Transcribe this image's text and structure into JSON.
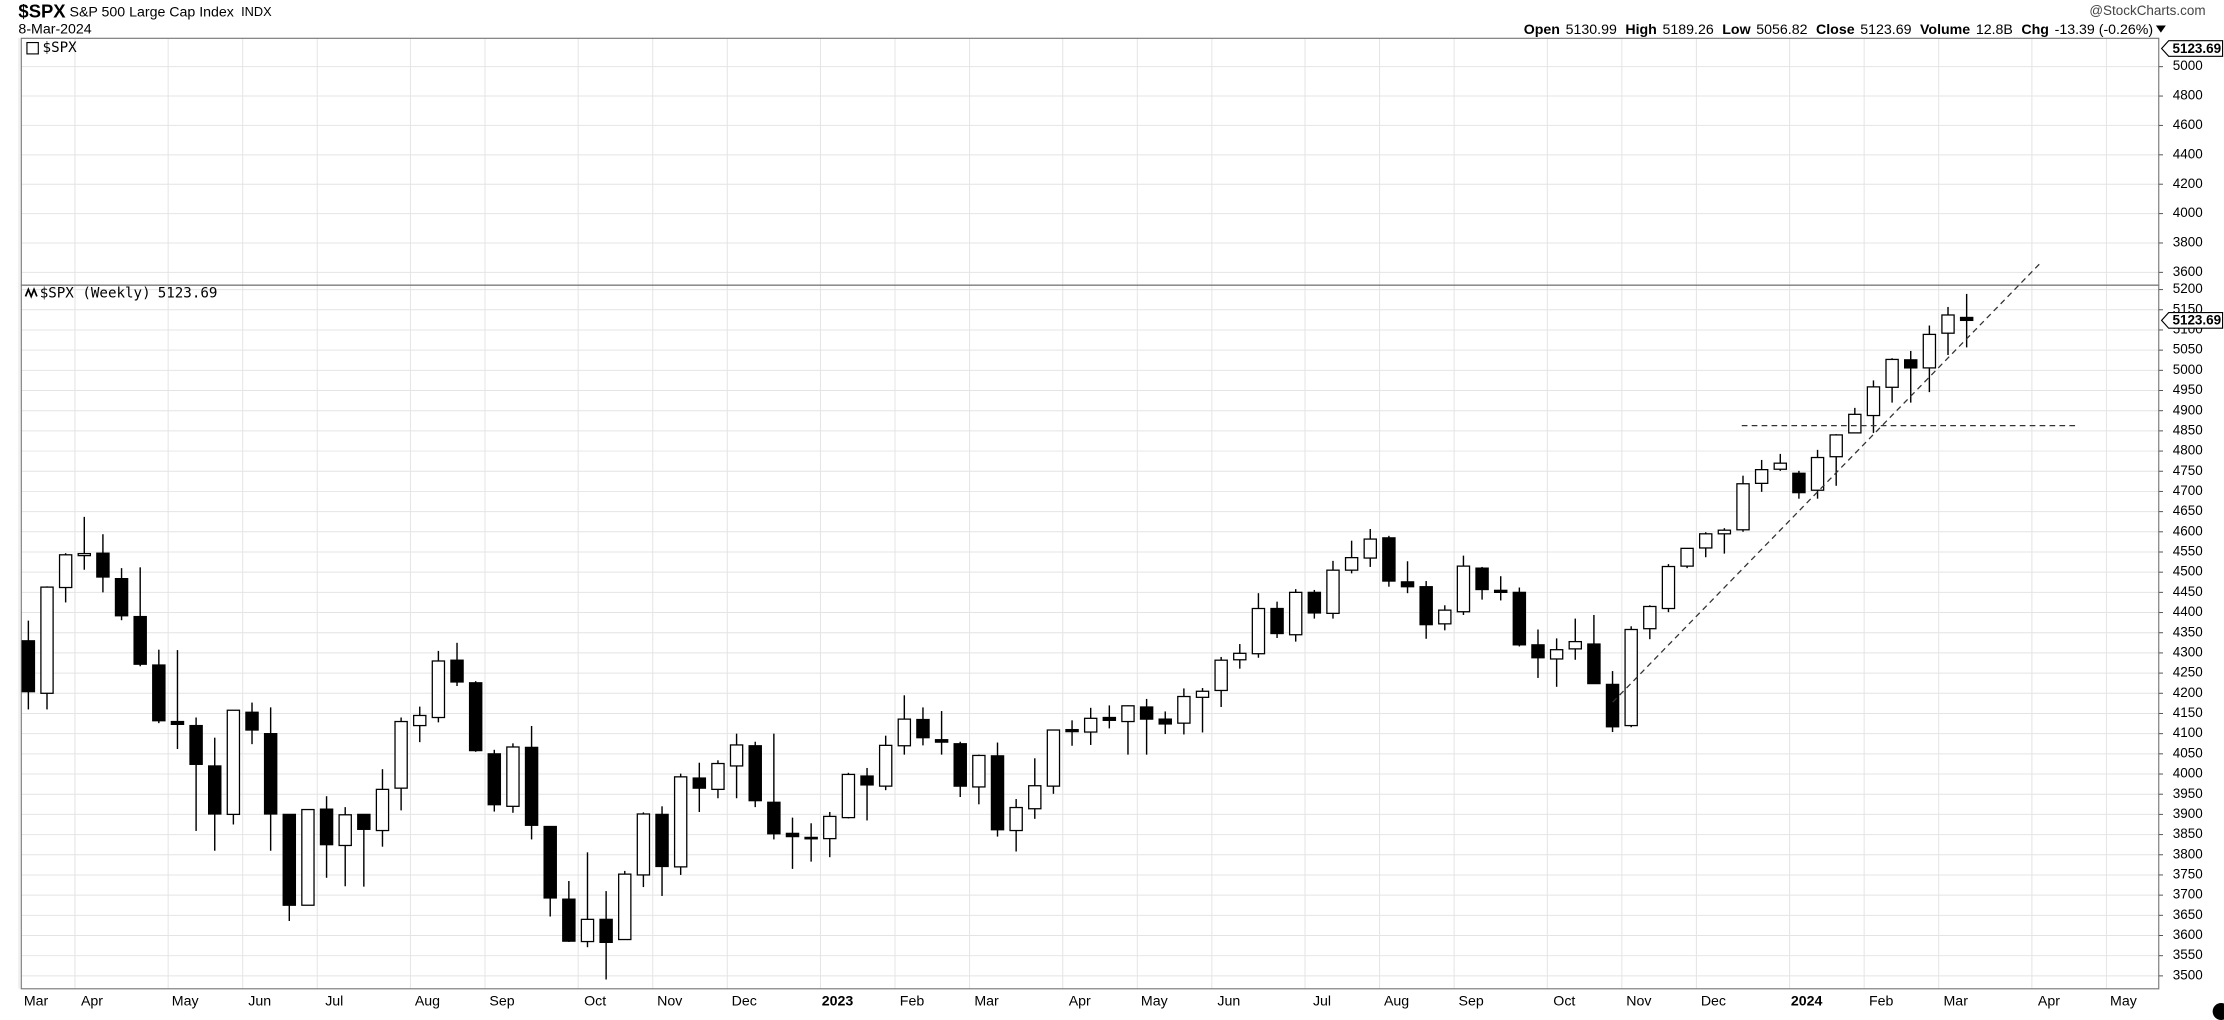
{
  "header": {
    "symbol": "$SPX",
    "name": "S&P 500 Large Cap Index",
    "exchange": "INDX",
    "date": "8-Mar-2024",
    "labels": {
      "open": "Open",
      "high": "High",
      "low": "Low",
      "close": "Close",
      "volume": "Volume",
      "change": "Chg"
    },
    "volume": "12.8B",
    "change": "-13.39 (-0.26%)",
    "credit": "@StockCharts.com"
  },
  "chart_data": [
    {
      "type": "blank",
      "label": "$SPX",
      "ylim": [
        3513,
        5193
      ],
      "yticks": [
        3600,
        3800,
        4000,
        4200,
        4400,
        4600,
        4800,
        5000
      ],
      "grid": true
    },
    {
      "type": "candlestick",
      "label": "$SPX (Weekly)",
      "categories": [
        "Mar",
        null,
        null,
        "Apr",
        null,
        null,
        null,
        null,
        "May",
        null,
        null,
        null,
        "Jun",
        null,
        null,
        null,
        "Jul",
        null,
        null,
        null,
        null,
        "Aug",
        null,
        null,
        null,
        "Sep",
        null,
        null,
        null,
        null,
        "Oct",
        null,
        null,
        null,
        "Nov",
        null,
        null,
        null,
        "Dec",
        null,
        null,
        null,
        null,
        "2023",
        null,
        null,
        null,
        "Feb",
        null,
        null,
        null,
        "Mar",
        null,
        null,
        null,
        null,
        "Apr",
        null,
        null,
        null,
        "May",
        null,
        null,
        null,
        "Jun",
        null,
        null,
        null,
        null,
        "Jul",
        null,
        null,
        null,
        "Aug",
        null,
        null,
        null,
        "Sep",
        null,
        null,
        null,
        null,
        "Oct",
        null,
        null,
        null,
        "Nov",
        null,
        null,
        null,
        "Dec",
        null,
        null,
        null,
        null,
        "2024",
        null,
        null,
        null,
        "Feb",
        null,
        null,
        null,
        "Mar",
        null,
        null,
        null,
        null,
        "Apr",
        null,
        null,
        null,
        "May",
        null,
        null
      ],
      "open": [
        4330,
        4200,
        4462,
        4541,
        4547,
        4484,
        4390,
        4270,
        4130,
        4120,
        4020,
        3900,
        4153,
        4100,
        3900,
        3675,
        3913,
        3823,
        3900,
        3860,
        3965,
        4120,
        4140,
        4282,
        4226,
        4050,
        3920,
        4066,
        3870,
        3690,
        3585,
        3640,
        3590,
        3750,
        3900,
        3770,
        3990,
        3962,
        4020,
        4070,
        3930,
        3853,
        3843,
        3840,
        3892,
        3995,
        3970,
        4070,
        4135,
        4085,
        4075,
        3968,
        4045,
        3860,
        3914,
        3970,
        4110,
        4104,
        4140,
        4130,
        4166,
        4136,
        4126,
        4190,
        4207,
        4283,
        4298,
        4410,
        4345,
        4450,
        4398,
        4505,
        4535,
        4585,
        4476,
        4464,
        4372,
        4402,
        4510,
        4455,
        4450,
        4320,
        4285,
        4310,
        4322,
        4222,
        4120,
        4360,
        4410,
        4515,
        4560,
        4595,
        4605,
        4720,
        4755,
        4745,
        4703,
        4786,
        4845,
        4888,
        4958,
        5026,
        5006,
        5092,
        5130.99,
        null,
        null,
        null,
        null,
        null,
        null,
        null,
        null,
        null,
        null
      ],
      "high": [
        4380,
        4465,
        4547,
        4637,
        4594,
        4510,
        4512,
        4308,
        4307,
        4140,
        4090,
        4158,
        4177,
        4165,
        3900,
        3913,
        3945,
        3918,
        3900,
        4012,
        4140,
        4167,
        4305,
        4325,
        4230,
        4060,
        4076,
        4119,
        3870,
        3735,
        3806,
        3710,
        3760,
        3905,
        3920,
        4001,
        4028,
        4034,
        4100,
        4080,
        4100,
        3892,
        3878,
        3906,
        4003,
        4015,
        4095,
        4195,
        4165,
        4156,
        4080,
        4048,
        4078,
        3938,
        4039,
        4110,
        4133,
        4164,
        4170,
        4170,
        4186,
        4155,
        4212,
        4213,
        4290,
        4322,
        4448,
        4427,
        4458,
        4456,
        4528,
        4578,
        4607,
        4590,
        4527,
        4478,
        4418,
        4541,
        4513,
        4490,
        4462,
        4358,
        4336,
        4385,
        4394,
        4255,
        4366,
        4418,
        4520,
        4560,
        4599,
        4609,
        4739,
        4778,
        4793,
        4751,
        4803,
        4842,
        4907,
        4975,
        5030,
        5048,
        5111,
        5157,
        5189.26,
        null,
        null,
        null,
        null,
        null,
        null,
        null,
        null,
        null,
        null
      ],
      "low": [
        4160,
        4160,
        4425,
        4506,
        4450,
        4381,
        4267,
        4126,
        4062,
        3859,
        3810,
        3875,
        4074,
        3810,
        3636,
        3675,
        3743,
        3722,
        3721,
        3820,
        3910,
        4079,
        4128,
        4218,
        4055,
        3907,
        3904,
        3838,
        3647,
        3584,
        3571,
        3491,
        3590,
        3720,
        3698,
        3750,
        3906,
        3940,
        3940,
        3918,
        3838,
        3765,
        3783,
        3794,
        3890,
        3885,
        3960,
        4048,
        4071,
        4048,
        3943,
        3925,
        3845,
        3808,
        3889,
        3951,
        4070,
        4072,
        4113,
        4048,
        4048,
        4099,
        4098,
        4103,
        4166,
        4261,
        4288,
        4337,
        4328,
        4385,
        4385,
        4497,
        4513,
        4464,
        4448,
        4335,
        4356,
        4394,
        4432,
        4430,
        4316,
        4238,
        4216,
        4283,
        4223,
        4104,
        4116,
        4334,
        4401,
        4510,
        4537,
        4546,
        4600,
        4699,
        4751,
        4682,
        4682,
        4714,
        4844,
        4845,
        4920,
        4920,
        4946,
        5038,
        5056.82,
        null,
        null,
        null,
        null,
        null,
        null,
        null,
        null,
        null,
        null
      ],
      "close": [
        4204,
        4463,
        4543,
        4546,
        4488,
        4392,
        4272,
        4132,
        4123,
        4024,
        3901,
        4158,
        4109,
        3901,
        3675,
        3912,
        3825,
        3899,
        3863,
        3962,
        4130,
        4145,
        4280,
        4228,
        4058,
        3924,
        4067,
        3873,
        3693,
        3586,
        3640,
        3583,
        3752,
        3901,
        3771,
        3993,
        3965,
        4026,
        4072,
        3934,
        3852,
        3845,
        3840,
        3895,
        3999,
        3973,
        4071,
        4136,
        4090,
        4079,
        3970,
        4046,
        3862,
        3917,
        3971,
        4109,
        4105,
        4138,
        4133,
        4169,
        4136,
        4124,
        4192,
        4205,
        4282,
        4299,
        4410,
        4348,
        4450,
        4399,
        4505,
        4536,
        4582,
        4478,
        4464,
        4370,
        4406,
        4515,
        4457,
        4450,
        4320,
        4288,
        4308,
        4328,
        4224,
        4117,
        4358,
        4415,
        4514,
        4559,
        4595,
        4604,
        4719,
        4754,
        4770,
        4697,
        4784,
        4840,
        4891,
        4959,
        5027,
        5006,
        5089,
        5137.08,
        5123.69,
        null,
        null,
        null,
        null,
        null,
        null,
        null,
        null,
        null,
        null
      ],
      "ylim": [
        3468,
        5211
      ],
      "yticks": [
        3500,
        3550,
        3600,
        3650,
        3700,
        3750,
        3800,
        3850,
        3900,
        3950,
        4000,
        4050,
        4100,
        4150,
        4200,
        4250,
        4300,
        4350,
        4400,
        4450,
        4500,
        4550,
        4600,
        4650,
        4700,
        4750,
        4800,
        4850,
        4900,
        4950,
        5000,
        5050,
        5100,
        5150,
        5200
      ],
      "grid": true,
      "colors": {
        "up": "#ffffff",
        "down": "#000000",
        "outline": "#000000"
      }
    }
  ]
}
